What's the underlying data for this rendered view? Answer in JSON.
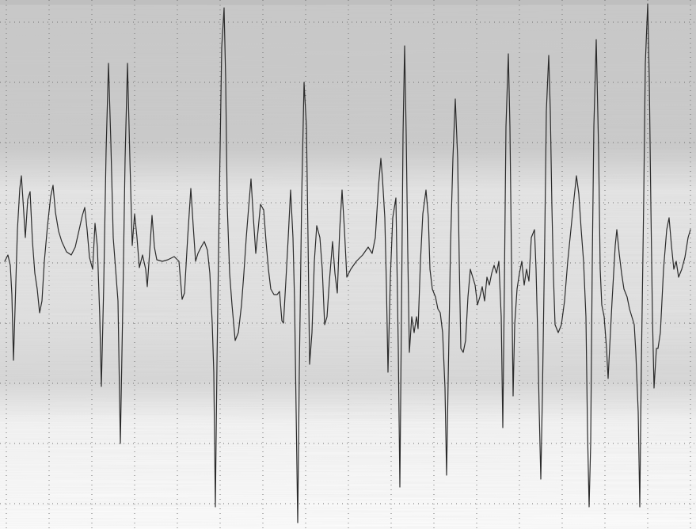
{
  "image": {
    "kind": "paper-recording-strip",
    "colors": {
      "paper_top": "#cfcfcf",
      "paper_bottom": "#ffffff",
      "grid_dot": "#7a7a7a",
      "trace": "#2a2a2a"
    }
  }
}
